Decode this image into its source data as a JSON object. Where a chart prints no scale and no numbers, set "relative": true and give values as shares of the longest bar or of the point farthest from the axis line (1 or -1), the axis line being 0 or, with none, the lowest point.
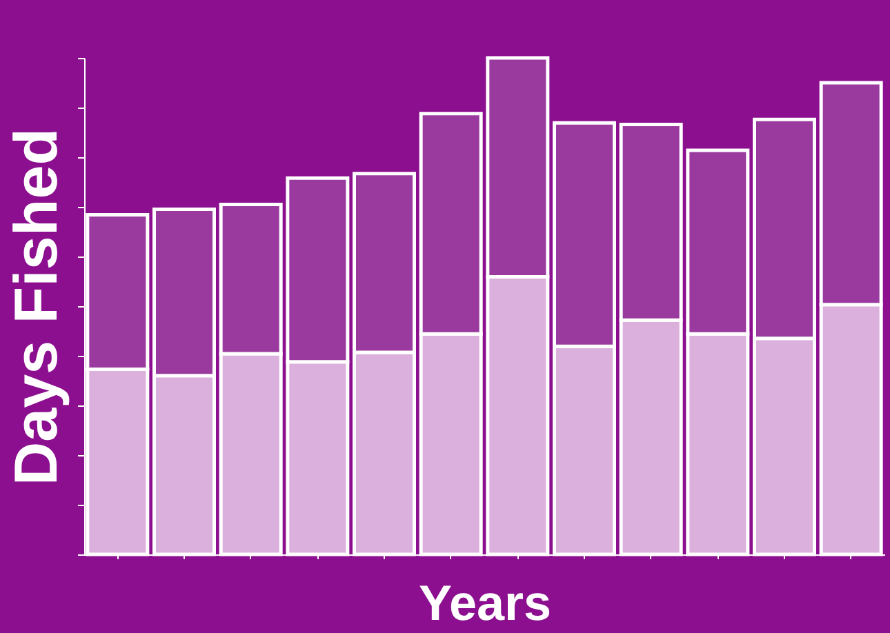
{
  "chart_data": {
    "type": "bar",
    "stacked": true,
    "relative": true,
    "xlabel": "Years",
    "ylabel": "Days Fished",
    "categories": [
      null,
      null,
      null,
      null,
      null,
      null,
      null,
      null,
      null,
      null,
      null,
      null
    ],
    "series": [
      {
        "color": "#dcb0dc",
        "values": [
          0.373,
          0.36,
          0.404,
          0.388,
          0.407,
          0.444,
          0.559,
          0.419,
          0.472,
          0.444,
          0.435,
          0.503
        ]
      },
      {
        "color": "#9a3a9e",
        "values": [
          0.311,
          0.335,
          0.301,
          0.37,
          0.36,
          0.444,
          0.441,
          0.45,
          0.394,
          0.37,
          0.441,
          0.447
        ]
      }
    ]
  }
}
